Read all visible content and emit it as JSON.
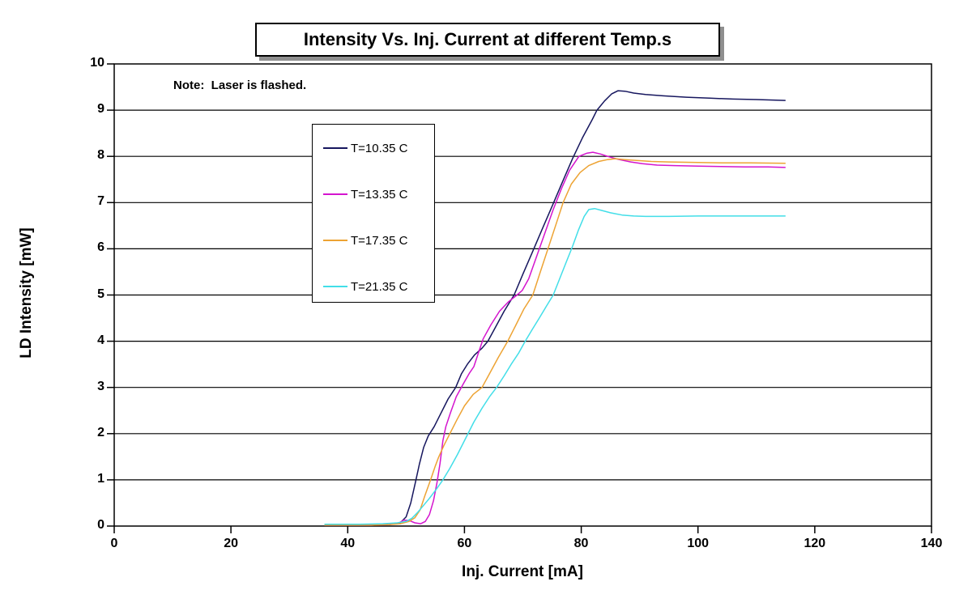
{
  "chart": {
    "title": "Intensity Vs. Inj. Current at different Temp.s",
    "note": "Note:  Laser is flashed.",
    "x_axis_title": "Inj. Current [mA]",
    "y_axis_title": "LD Intensity [mW]"
  },
  "chart_data": {
    "type": "line",
    "title": "Intensity Vs. Inj. Current at different Temp.s",
    "annotation": "Note:  Laser is flashed.",
    "xlabel": "Inj. Current [mA]",
    "ylabel": "LD Intensity [mW]",
    "xlim": [
      0,
      140
    ],
    "ylim": [
      0,
      10
    ],
    "x_ticks": [
      0,
      20,
      40,
      60,
      80,
      100,
      120,
      140
    ],
    "y_ticks": [
      0,
      1,
      2,
      3,
      4,
      5,
      6,
      7,
      8,
      9,
      10
    ],
    "grid": "horizontal",
    "legend_position": "inside-upper-left",
    "series": [
      {
        "name": "T=10.35 C",
        "color": "#16165E",
        "points": [
          [
            36,
            0.02
          ],
          [
            44,
            0.02
          ],
          [
            47,
            0.03
          ],
          [
            49,
            0.07
          ],
          [
            50,
            0.2
          ],
          [
            50.8,
            0.5
          ],
          [
            51.6,
            0.95
          ],
          [
            52.3,
            1.35
          ],
          [
            53,
            1.7
          ],
          [
            53.8,
            1.95
          ],
          [
            54.8,
            2.15
          ],
          [
            56,
            2.45
          ],
          [
            57.2,
            2.75
          ],
          [
            58.5,
            3.0
          ],
          [
            59.5,
            3.3
          ],
          [
            60.5,
            3.5
          ],
          [
            61.7,
            3.7
          ],
          [
            63,
            3.85
          ],
          [
            64,
            4.0
          ],
          [
            65.3,
            4.3
          ],
          [
            66.8,
            4.65
          ],
          [
            68.5,
            5.0
          ],
          [
            70,
            5.45
          ],
          [
            71.7,
            5.95
          ],
          [
            73.4,
            6.45
          ],
          [
            75.1,
            6.95
          ],
          [
            76.8,
            7.45
          ],
          [
            78.5,
            7.95
          ],
          [
            80.2,
            8.4
          ],
          [
            81.9,
            8.8
          ],
          [
            82.7,
            9.0
          ],
          [
            84,
            9.2
          ],
          [
            85.2,
            9.35
          ],
          [
            86.3,
            9.42
          ],
          [
            87.5,
            9.41
          ],
          [
            89,
            9.37
          ],
          [
            91,
            9.34
          ],
          [
            94,
            9.31
          ],
          [
            98,
            9.28
          ],
          [
            102,
            9.26
          ],
          [
            106,
            9.24
          ],
          [
            110,
            9.23
          ],
          [
            115,
            9.21
          ]
        ]
      },
      {
        "name": "T=13.35 C",
        "color": "#D414CE",
        "points": [
          [
            36,
            0.02
          ],
          [
            44,
            0.02
          ],
          [
            47,
            0.03
          ],
          [
            48.8,
            0.07
          ],
          [
            49.6,
            0.13
          ],
          [
            50.5,
            0.12
          ],
          [
            51.5,
            0.07
          ],
          [
            52.5,
            0.05
          ],
          [
            53.3,
            0.1
          ],
          [
            54,
            0.25
          ],
          [
            54.7,
            0.55
          ],
          [
            55.3,
            0.95
          ],
          [
            55.8,
            1.35
          ],
          [
            56.3,
            1.85
          ],
          [
            56.8,
            2.15
          ],
          [
            57.6,
            2.45
          ],
          [
            58.6,
            2.8
          ],
          [
            59.9,
            3.1
          ],
          [
            60.8,
            3.3
          ],
          [
            61.6,
            3.45
          ],
          [
            62.4,
            3.75
          ],
          [
            63.2,
            4.05
          ],
          [
            64.5,
            4.35
          ],
          [
            66,
            4.65
          ],
          [
            67.5,
            4.85
          ],
          [
            69,
            5.0
          ],
          [
            69.9,
            5.1
          ],
          [
            71,
            5.35
          ],
          [
            72.4,
            5.85
          ],
          [
            73.8,
            6.35
          ],
          [
            75.2,
            6.85
          ],
          [
            76.6,
            7.3
          ],
          [
            78,
            7.7
          ],
          [
            79.6,
            8.0
          ],
          [
            81,
            8.07
          ],
          [
            82,
            8.09
          ],
          [
            83.3,
            8.05
          ],
          [
            84.8,
            7.99
          ],
          [
            86.5,
            7.93
          ],
          [
            88.5,
            7.88
          ],
          [
            90.5,
            7.84
          ],
          [
            93,
            7.81
          ],
          [
            96,
            7.8
          ],
          [
            100,
            7.79
          ],
          [
            104,
            7.78
          ],
          [
            108,
            7.77
          ],
          [
            112,
            7.77
          ],
          [
            115,
            7.76
          ]
        ]
      },
      {
        "name": "T=17.35 C",
        "color": "#EDA333",
        "points": [
          [
            36,
            0.02
          ],
          [
            44,
            0.02
          ],
          [
            47,
            0.03
          ],
          [
            49,
            0.05
          ],
          [
            50.5,
            0.1
          ],
          [
            51.5,
            0.18
          ],
          [
            52.4,
            0.35
          ],
          [
            53.2,
            0.65
          ],
          [
            54.2,
            1.0
          ],
          [
            55,
            1.3
          ],
          [
            55.6,
            1.5
          ],
          [
            56.5,
            1.75
          ],
          [
            57.5,
            2.0
          ],
          [
            58.7,
            2.3
          ],
          [
            60,
            2.6
          ],
          [
            61.5,
            2.85
          ],
          [
            63,
            3.0
          ],
          [
            64.3,
            3.3
          ],
          [
            65.8,
            3.65
          ],
          [
            67.4,
            4.0
          ],
          [
            68.8,
            4.35
          ],
          [
            70.2,
            4.7
          ],
          [
            71.7,
            5.0
          ],
          [
            73,
            5.5
          ],
          [
            74.3,
            6.0
          ],
          [
            75.6,
            6.5
          ],
          [
            76.9,
            7.0
          ],
          [
            78.3,
            7.4
          ],
          [
            79.8,
            7.65
          ],
          [
            81.3,
            7.8
          ],
          [
            83,
            7.89
          ],
          [
            84.5,
            7.93
          ],
          [
            85.8,
            7.95
          ],
          [
            87.5,
            7.93
          ],
          [
            89.5,
            7.91
          ],
          [
            92,
            7.89
          ],
          [
            95,
            7.88
          ],
          [
            99,
            7.87
          ],
          [
            104,
            7.86
          ],
          [
            109,
            7.86
          ],
          [
            115,
            7.85
          ]
        ]
      },
      {
        "name": "T=21.35 C",
        "color": "#42DEE8",
        "points": [
          [
            36,
            0.04
          ],
          [
            42,
            0.04
          ],
          [
            46,
            0.05
          ],
          [
            48.5,
            0.07
          ],
          [
            50,
            0.1
          ],
          [
            51,
            0.17
          ],
          [
            52,
            0.3
          ],
          [
            53,
            0.45
          ],
          [
            54,
            0.6
          ],
          [
            55.2,
            0.8
          ],
          [
            56.3,
            1.0
          ],
          [
            57.5,
            1.25
          ],
          [
            58.8,
            1.55
          ],
          [
            60.2,
            1.9
          ],
          [
            61.6,
            2.25
          ],
          [
            63,
            2.55
          ],
          [
            64.3,
            2.8
          ],
          [
            65.5,
            3.0
          ],
          [
            66.8,
            3.25
          ],
          [
            68,
            3.5
          ],
          [
            69.3,
            3.75
          ],
          [
            70.4,
            4.0
          ],
          [
            71.6,
            4.25
          ],
          [
            72.8,
            4.5
          ],
          [
            74,
            4.75
          ],
          [
            75.2,
            5.0
          ],
          [
            76.3,
            5.35
          ],
          [
            77.4,
            5.7
          ],
          [
            78.5,
            6.05
          ],
          [
            79.5,
            6.4
          ],
          [
            80.5,
            6.7
          ],
          [
            81.3,
            6.85
          ],
          [
            82.3,
            6.87
          ],
          [
            83.5,
            6.83
          ],
          [
            85,
            6.78
          ],
          [
            87,
            6.73
          ],
          [
            89,
            6.71
          ],
          [
            91,
            6.7
          ],
          [
            95,
            6.7
          ],
          [
            100,
            6.71
          ],
          [
            106,
            6.71
          ],
          [
            111,
            6.71
          ],
          [
            115,
            6.71
          ]
        ]
      }
    ]
  }
}
